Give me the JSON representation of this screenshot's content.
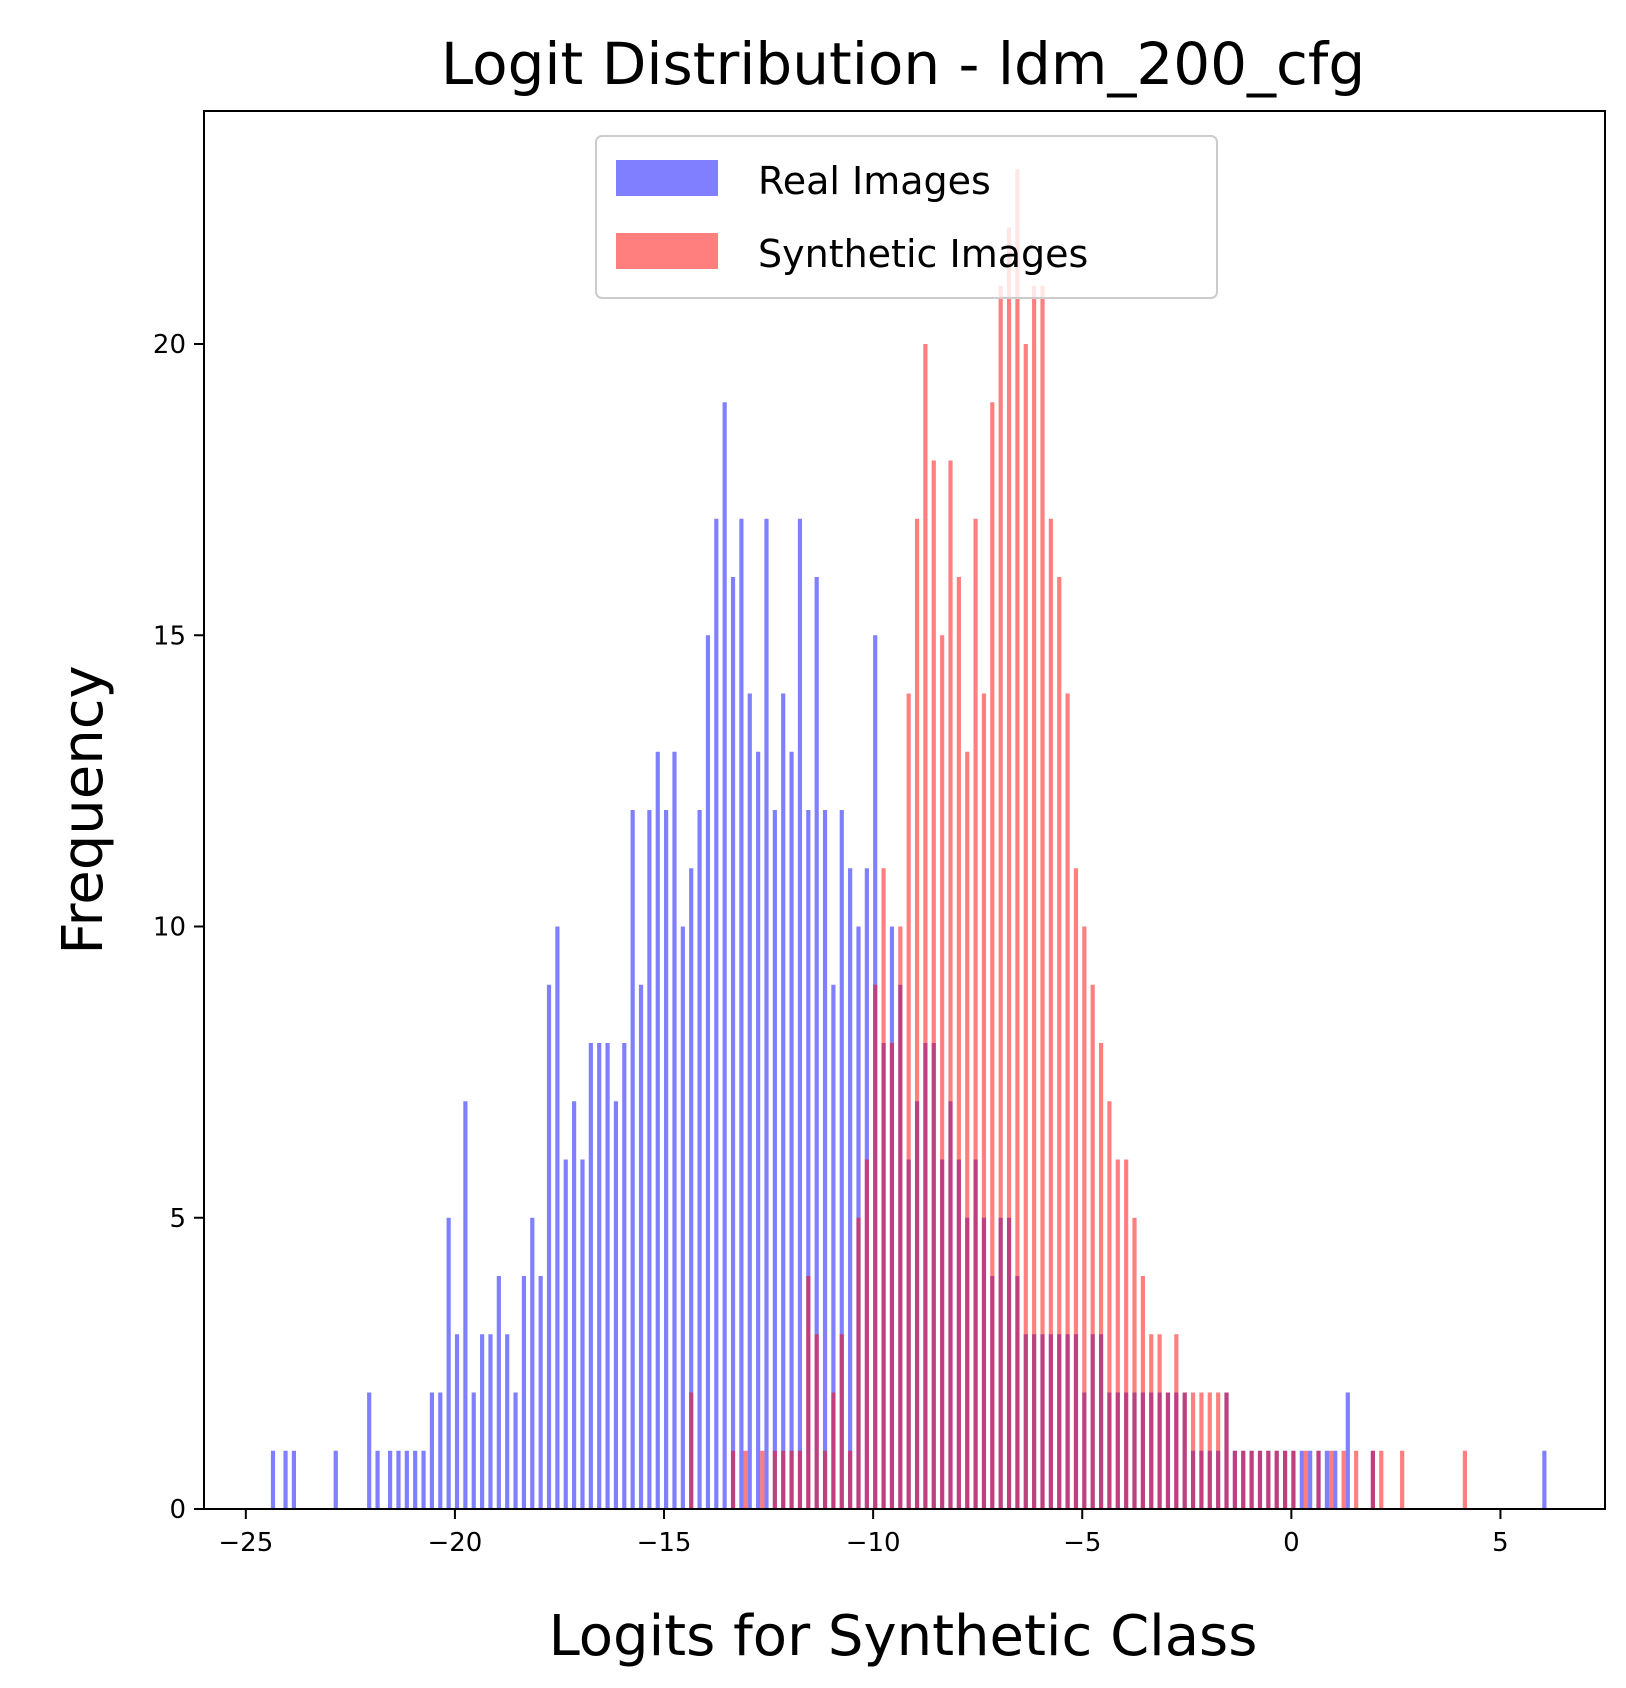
{
  "chart_data": {
    "type": "bar",
    "title": "Logit Distribution - ldm_200_cfg",
    "xlabel": "Logits for Synthetic Class",
    "ylabel": "Frequency",
    "xlim": [
      -26,
      7.5
    ],
    "ylim": [
      0,
      24
    ],
    "xticks": [
      -25,
      -20,
      -15,
      -10,
      -5,
      0,
      5
    ],
    "xtick_labels": [
      "−25",
      "−20",
      "−15",
      "−10",
      "−5",
      "0",
      "5"
    ],
    "yticks": [
      0,
      5,
      10,
      15,
      20
    ],
    "ytick_labels": [
      "0",
      "5",
      "10",
      "15",
      "20"
    ],
    "grid": false,
    "legend_position": "upper center",
    "bar_width": 0.1,
    "series": [
      {
        "name": "Real Images",
        "color": "#0000ff",
        "alpha": 0.5,
        "x": [
          -24.4,
          -24.1,
          -23.9,
          -22.9,
          -22.1,
          -21.9,
          -21.6,
          -21.4,
          -21.2,
          -21.0,
          -20.8,
          -20.6,
          -20.4,
          -20.2,
          -20.0,
          -19.8,
          -19.6,
          -19.4,
          -19.2,
          -19.0,
          -18.8,
          -18.6,
          -18.4,
          -18.2,
          -18.0,
          -17.8,
          -17.6,
          -17.4,
          -17.2,
          -17.0,
          -16.8,
          -16.6,
          -16.4,
          -16.2,
          -16.0,
          -15.8,
          -15.6,
          -15.4,
          -15.2,
          -15.0,
          -14.8,
          -14.6,
          -14.4,
          -14.2,
          -14.0,
          -13.8,
          -13.6,
          -13.4,
          -13.2,
          -13.0,
          -12.8,
          -12.6,
          -12.4,
          -12.2,
          -12.0,
          -11.8,
          -11.6,
          -11.4,
          -11.2,
          -11.0,
          -10.8,
          -10.6,
          -10.4,
          -10.2,
          -10.0,
          -9.8,
          -9.6,
          -9.4,
          -9.2,
          -9.0,
          -8.8,
          -8.6,
          -8.4,
          -8.2,
          -8.0,
          -7.8,
          -7.6,
          -7.4,
          -7.2,
          -7.0,
          -6.8,
          -6.6,
          -6.4,
          -6.2,
          -6.0,
          -5.8,
          -5.6,
          -5.4,
          -5.2,
          -5.0,
          -4.8,
          -4.6,
          -4.4,
          -4.2,
          -4.0,
          -3.8,
          -3.6,
          -3.4,
          -3.2,
          -3.0,
          -2.8,
          -2.6,
          -2.4,
          -2.2,
          -2.0,
          -1.8,
          -1.6,
          -1.4,
          -1.2,
          -1.0,
          -0.8,
          -0.6,
          -0.4,
          -0.2,
          0.0,
          0.2,
          0.4,
          0.6,
          0.8,
          1.0,
          1.3,
          1.9,
          6.0
        ],
        "values": [
          1,
          1,
          1,
          1,
          2,
          1,
          1,
          1,
          1,
          1,
          1,
          2,
          2,
          5,
          3,
          7,
          2,
          3,
          3,
          4,
          3,
          2,
          4,
          5,
          4,
          9,
          10,
          6,
          7,
          6,
          8,
          8,
          8,
          7,
          8,
          12,
          9,
          12,
          13,
          12,
          13,
          10,
          11,
          12,
          15,
          17,
          19,
          16,
          17,
          14,
          13,
          17,
          12,
          14,
          13,
          17,
          12,
          16,
          12,
          9,
          12,
          11,
          10,
          11,
          15,
          8,
          10,
          9,
          6,
          7,
          8,
          8,
          6,
          7,
          6,
          5,
          6,
          5,
          4,
          5,
          5,
          4,
          3,
          3,
          3,
          3,
          3,
          3,
          3,
          2,
          3,
          3,
          2,
          2,
          2,
          2,
          2,
          2,
          2,
          2,
          2,
          2,
          1,
          1,
          1,
          1,
          2,
          1,
          1,
          1,
          1,
          1,
          1,
          1,
          1,
          1,
          1,
          1,
          1,
          1,
          2,
          1,
          1
        ]
      },
      {
        "name": "Synthetic Images",
        "color": "#ff0000",
        "alpha": 0.5,
        "x": [
          -14.4,
          -13.4,
          -13.1,
          -12.7,
          -12.4,
          -12.2,
          -12.0,
          -11.8,
          -11.6,
          -11.4,
          -11.2,
          -11.0,
          -10.8,
          -10.6,
          -10.4,
          -10.2,
          -10.0,
          -9.8,
          -9.6,
          -9.4,
          -9.2,
          -9.0,
          -8.8,
          -8.6,
          -8.4,
          -8.2,
          -8.0,
          -7.8,
          -7.6,
          -7.4,
          -7.2,
          -7.0,
          -6.8,
          -6.6,
          -6.4,
          -6.2,
          -6.0,
          -5.8,
          -5.6,
          -5.4,
          -5.2,
          -5.0,
          -4.8,
          -4.6,
          -4.4,
          -4.2,
          -4.0,
          -3.8,
          -3.6,
          -3.4,
          -3.2,
          -3.0,
          -2.8,
          -2.6,
          -2.4,
          -2.2,
          -2.0,
          -1.8,
          -1.6,
          -1.4,
          -1.2,
          -1.0,
          -0.8,
          -0.6,
          -0.4,
          -0.2,
          0.0,
          0.3,
          0.6,
          0.9,
          1.2,
          1.5,
          1.9,
          2.1,
          2.6,
          4.1
        ],
        "values": [
          2,
          1,
          1,
          1,
          1,
          1,
          1,
          1,
          4,
          3,
          1,
          2,
          3,
          1,
          5,
          6,
          9,
          11,
          8,
          10,
          14,
          17,
          20,
          18,
          15,
          18,
          16,
          13,
          17,
          14,
          19,
          21,
          22,
          23,
          20,
          21,
          21,
          17,
          16,
          14,
          11,
          10,
          9,
          8,
          7,
          6,
          6,
          5,
          4,
          3,
          3,
          2,
          3,
          2,
          2,
          2,
          2,
          2,
          2,
          1,
          1,
          1,
          1,
          1,
          1,
          1,
          1,
          1,
          1,
          1,
          1,
          1,
          1,
          1,
          1,
          1
        ]
      }
    ]
  }
}
